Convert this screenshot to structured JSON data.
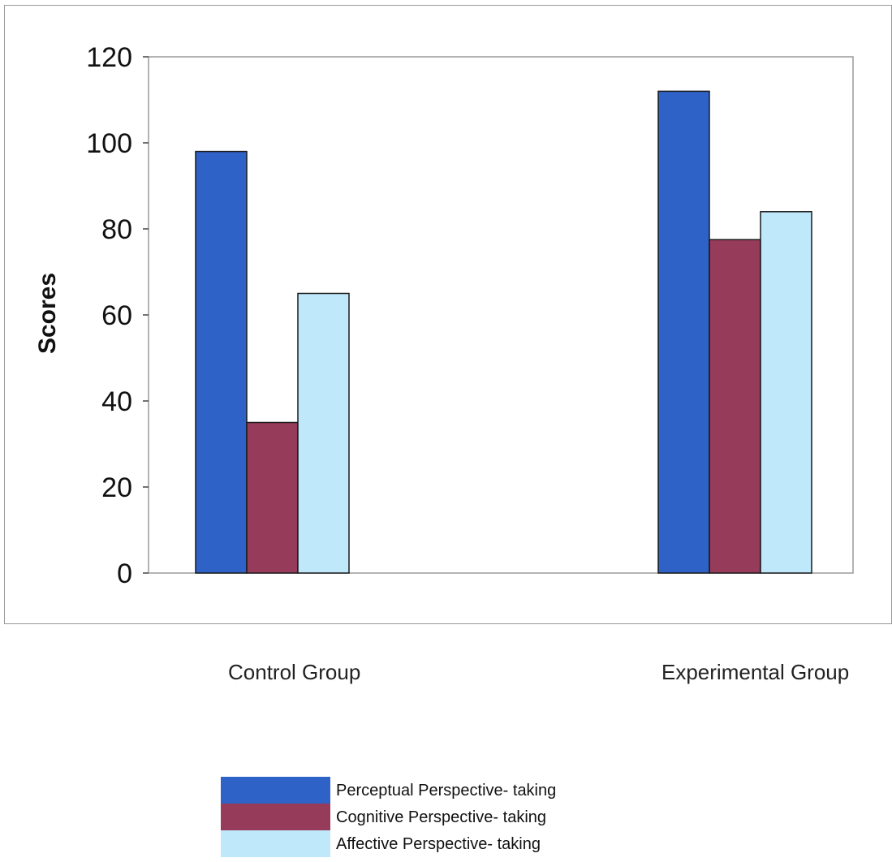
{
  "chart_data": {
    "type": "bar",
    "categories": [
      "Control Group",
      "Experimental Group"
    ],
    "series": [
      {
        "name": "Perceptual Perspective- taking",
        "values": [
          98,
          112
        ],
        "color": "#2f62c7"
      },
      {
        "name": "Cognitive Perspective- taking",
        "values": [
          35,
          77.5
        ],
        "color": "#973b5a"
      },
      {
        "name": "Affective Perspective- taking",
        "values": [
          65,
          84
        ],
        "color": "#bfe8fb"
      }
    ],
    "ylabel": "Scores",
    "ylim": [
      0,
      120
    ],
    "yticks": [
      "0",
      "20",
      "40",
      "60",
      "80",
      "100",
      "120"
    ],
    "grid": false,
    "legend_position": "bottom"
  }
}
